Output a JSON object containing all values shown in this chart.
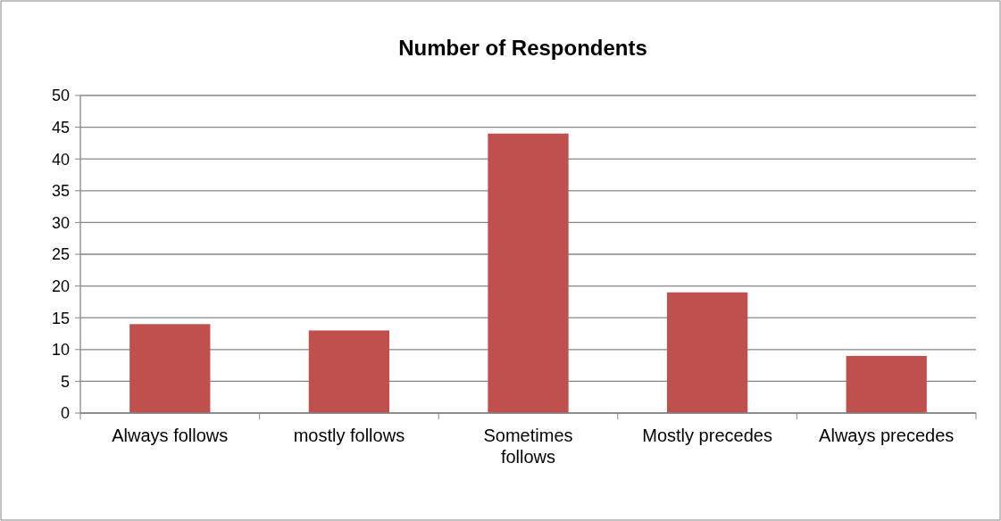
{
  "chart_data": {
    "type": "bar",
    "title": "Number of Respondents",
    "categories": [
      "Always follows",
      "mostly follows",
      "Sometimes follows",
      "Mostly precedes",
      "Always precedes"
    ],
    "values": [
      14,
      13,
      44,
      19,
      9
    ],
    "color": "#c0504d",
    "ylim": [
      0,
      50
    ],
    "yticks": [
      0,
      5,
      10,
      15,
      20,
      25,
      30,
      35,
      40,
      45,
      50
    ],
    "grid": "y"
  }
}
